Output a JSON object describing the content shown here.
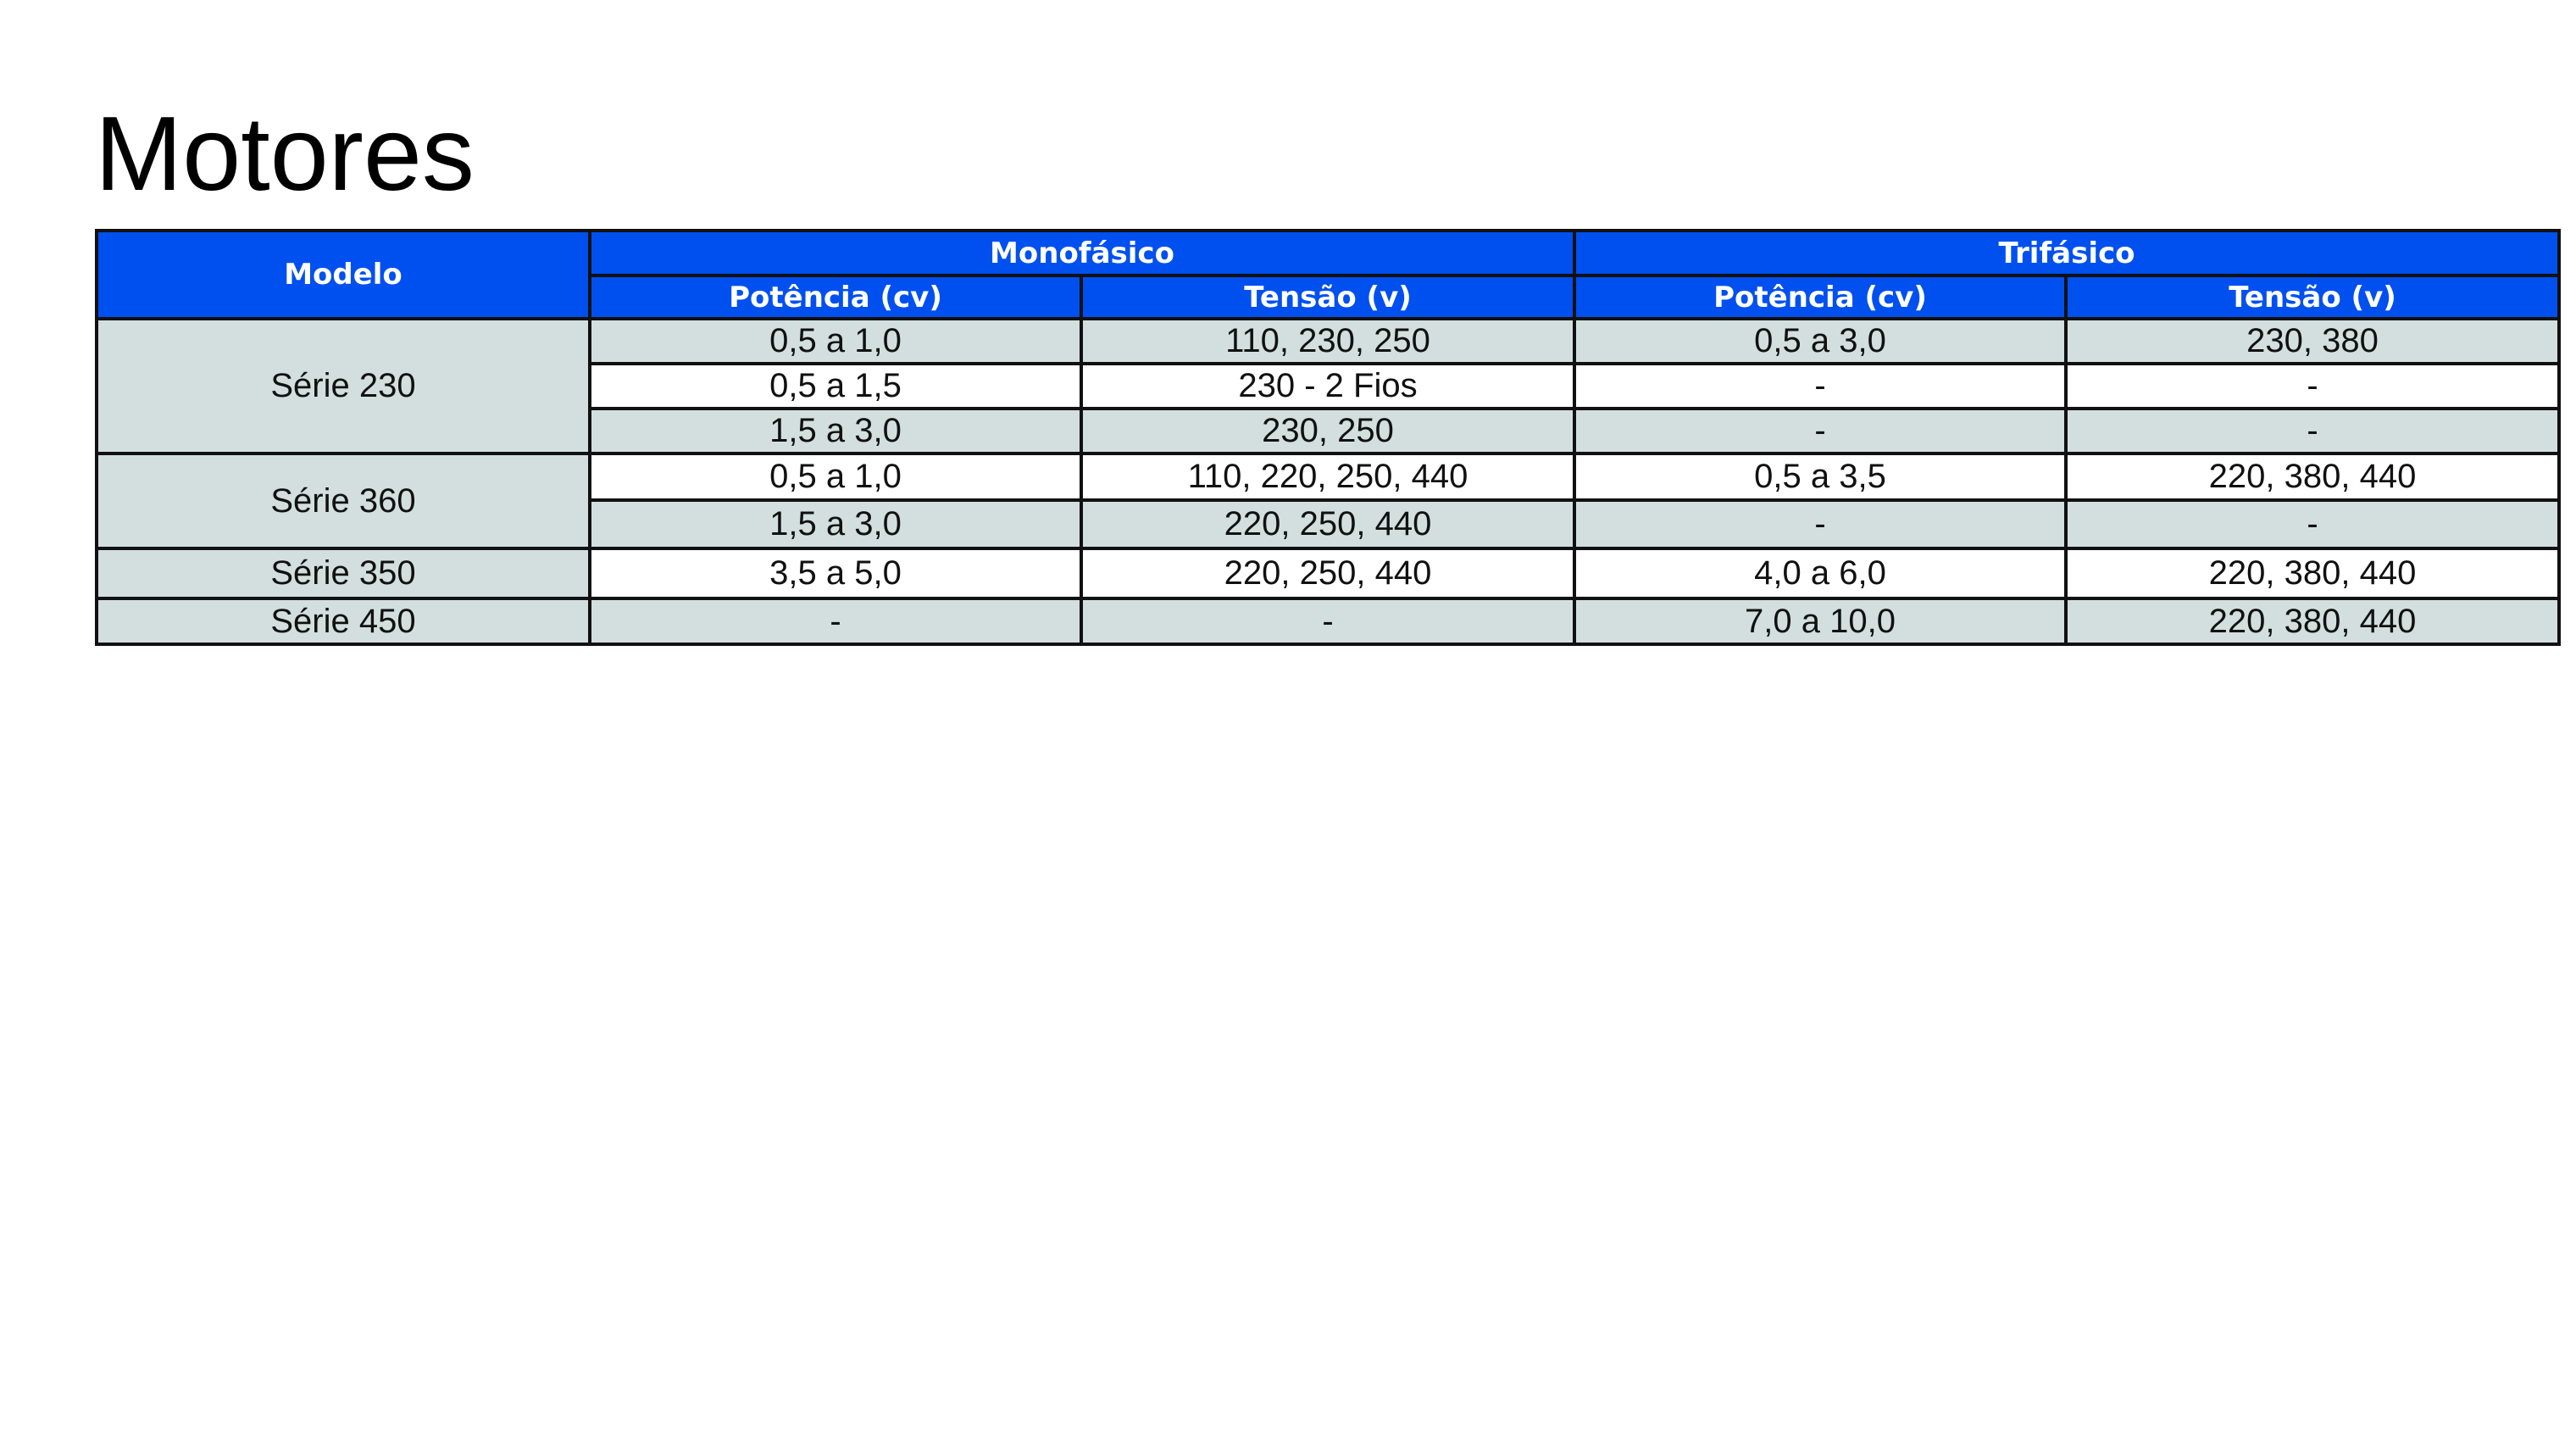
{
  "title": "Motores",
  "colors": {
    "header": "#0050F0",
    "shaded_row": "#D3DFDF"
  },
  "headers": {
    "modelo": "Modelo",
    "mono": "Monofásico",
    "tri": "Trifásico",
    "mono_pot": "Potência (cv)",
    "mono_ten": "Tensão (v)",
    "tri_pot": "Potência (cv)",
    "tri_ten": "Tensão (v)"
  },
  "models": [
    "Série 230",
    "Série 360",
    "Série 350",
    "Série 450"
  ],
  "rows": [
    [
      "0,5 a 1,0",
      "110, 230, 250",
      "0,5 a 3,0",
      "230, 380"
    ],
    [
      "0,5 a 1,5",
      "230 - 2 Fios",
      "-",
      "-"
    ],
    [
      "1,5 a 3,0",
      "230, 250",
      "-",
      "-"
    ],
    [
      "0,5 a 1,0",
      "110, 220, 250, 440",
      "0,5 a 3,5",
      "220, 380, 440"
    ],
    [
      "1,5 a 3,0",
      "220, 250, 440",
      "-",
      "-"
    ],
    [
      "3,5 a 5,0",
      "220, 250, 440",
      "4,0 a 6,0",
      "220, 380, 440"
    ],
    [
      "-",
      "-",
      "7,0 a 10,0",
      "220, 380, 440"
    ]
  ]
}
